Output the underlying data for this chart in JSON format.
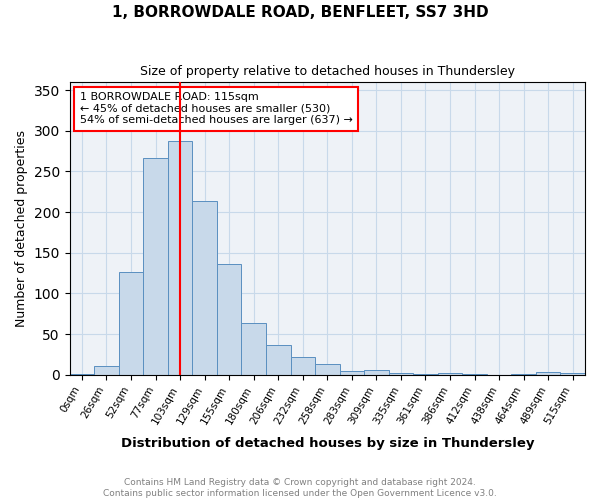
{
  "title_line1": "1, BORROWDALE ROAD, BENFLEET, SS7 3HD",
  "title_line2": "Size of property relative to detached houses in Thundersley",
  "xlabel": "Distribution of detached houses by size in Thundersley",
  "ylabel": "Number of detached properties",
  "bin_labels": [
    "0sqm",
    "26sqm",
    "52sqm",
    "77sqm",
    "103sqm",
    "129sqm",
    "155sqm",
    "180sqm",
    "206sqm",
    "232sqm",
    "258sqm",
    "283sqm",
    "309sqm",
    "335sqm",
    "361sqm",
    "386sqm",
    "412sqm",
    "438sqm",
    "464sqm",
    "489sqm",
    "515sqm"
  ],
  "bar_heights": [
    1,
    11,
    126,
    266,
    287,
    213,
    136,
    63,
    36,
    22,
    13,
    5,
    6,
    2,
    1,
    2,
    1,
    0,
    1,
    3,
    2
  ],
  "bar_color": "#c8d9ea",
  "bar_edge_color": "#5a8fc0",
  "grid_color": "#c8d9ea",
  "red_line_bin_index": 4,
  "annotation_text": "1 BORROWDALE ROAD: 115sqm\n← 45% of detached houses are smaller (530)\n54% of semi-detached houses are larger (637) →",
  "ylim": [
    0,
    360
  ],
  "yticks": [
    0,
    50,
    100,
    150,
    200,
    250,
    300,
    350
  ],
  "footnote_line1": "Contains HM Land Registry data © Crown copyright and database right 2024.",
  "footnote_line2": "Contains public sector information licensed under the Open Government Licence v3.0.",
  "background_color": "#eef2f7"
}
